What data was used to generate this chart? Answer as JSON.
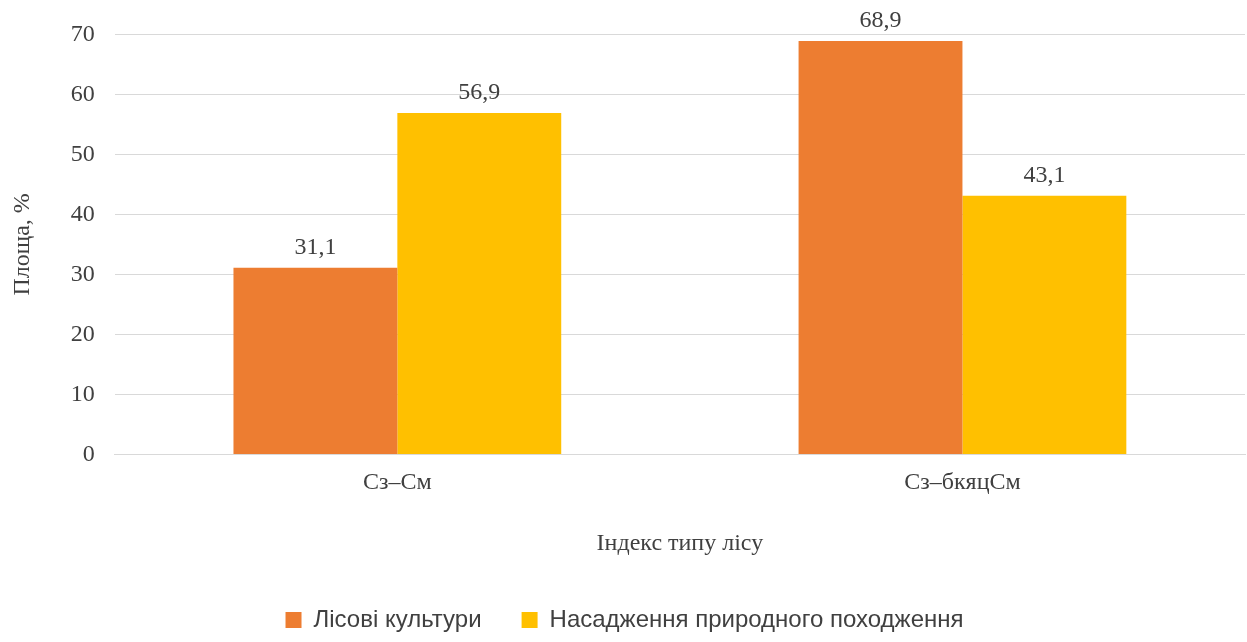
{
  "chart_data": {
    "type": "bar",
    "xlabel": "Індекс типу лісу",
    "ylabel": "Площа, %",
    "categories": [
      "Сз–См",
      "Сз–бкяцСм"
    ],
    "series": [
      {
        "name": "Лісові культури",
        "color": "#ed7d31",
        "values": [
          31.1,
          68.9
        ],
        "value_labels": [
          "31,1",
          "68,9"
        ]
      },
      {
        "name": "Насадження природного походження",
        "color": "#ffc000",
        "values": [
          56.9,
          43.1
        ],
        "value_labels": [
          "56,9",
          "43,1"
        ]
      }
    ],
    "ylim": [
      0,
      70
    ],
    "yticks": [
      0,
      10,
      20,
      30,
      40,
      50,
      60,
      70
    ],
    "grid": "y",
    "legend": "bottom"
  }
}
